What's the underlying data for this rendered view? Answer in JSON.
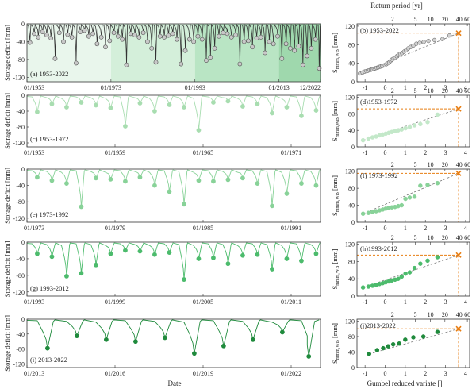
{
  "figure": {
    "ylabel_left": "Storage deficit [mm]",
    "xlabel_left": "Date",
    "top_axis_label": "Return period [yr]",
    "xlabel_right": "Gumbel reduced variate []",
    "ylabel_right_main": "S",
    "ylabel_right_sub": "mmm,WB",
    "ylabel_right_unit": "[mm]",
    "return_period_ticks": [
      "2",
      "5",
      "10",
      "20",
      "40",
      "60"
    ],
    "return_period_values": [
      2,
      5,
      10,
      20,
      40,
      60
    ]
  },
  "colors": {
    "axis": "#333333",
    "marker_line": "#e87d11",
    "period_a": "#9a9a9a",
    "period_b": "#a8ddb0",
    "period_c": "#88d298",
    "period_d": "#4cbb6c",
    "period_e": "#1f8a3c"
  },
  "chart_data": [
    {
      "panel": "a",
      "type": "line",
      "label": "(a)  1953-2022",
      "series_color": "#333333",
      "xticks": [
        "01/1953",
        "01/1973",
        "01/1993",
        "01/2013",
        "12/2022"
      ],
      "xtick_years": [
        1953,
        1973,
        1993,
        2013,
        2022.9
      ],
      "xlim": [
        1953,
        2022.9
      ],
      "yticks": [
        "0",
        "-40",
        "-80",
        "-120"
      ],
      "ylim": [
        -130,
        0
      ],
      "shading": [
        {
          "from": 1953,
          "to": 1973,
          "color": "#e9f6ec"
        },
        {
          "from": 1973,
          "to": 1993,
          "color": "#d4efda"
        },
        {
          "from": 1993,
          "to": 2013,
          "color": "#b9e5c4"
        },
        {
          "from": 2013,
          "to": 2022.9,
          "color": "#9fd8ad"
        }
      ],
      "annual_minima": [
        {
          "year": 1953.7,
          "value": -42
        },
        {
          "year": 1954.7,
          "value": -22
        },
        {
          "year": 1955.7,
          "value": -30
        },
        {
          "year": 1956.7,
          "value": -18
        },
        {
          "year": 1957.7,
          "value": -25
        },
        {
          "year": 1958.7,
          "value": -32
        },
        {
          "year": 1959.7,
          "value": -78
        },
        {
          "year": 1960.7,
          "value": -20
        },
        {
          "year": 1961.7,
          "value": -40
        },
        {
          "year": 1962.7,
          "value": -24
        },
        {
          "year": 1963.7,
          "value": -30
        },
        {
          "year": 1964.7,
          "value": -88
        },
        {
          "year": 1965.7,
          "value": -18
        },
        {
          "year": 1966.7,
          "value": -15
        },
        {
          "year": 1967.7,
          "value": -28
        },
        {
          "year": 1968.7,
          "value": -22
        },
        {
          "year": 1969.7,
          "value": -45
        },
        {
          "year": 1970.7,
          "value": -30
        },
        {
          "year": 1971.7,
          "value": -52
        },
        {
          "year": 1972.7,
          "value": -38
        },
        {
          "year": 1973.7,
          "value": -20
        },
        {
          "year": 1974.7,
          "value": -28
        },
        {
          "year": 1975.7,
          "value": -35
        },
        {
          "year": 1976.7,
          "value": -92
        },
        {
          "year": 1977.7,
          "value": -22
        },
        {
          "year": 1978.7,
          "value": -25
        },
        {
          "year": 1979.7,
          "value": -30
        },
        {
          "year": 1980.7,
          "value": -20
        },
        {
          "year": 1981.7,
          "value": -40
        },
        {
          "year": 1982.7,
          "value": -55
        },
        {
          "year": 1983.7,
          "value": -86
        },
        {
          "year": 1984.7,
          "value": -28
        },
        {
          "year": 1985.7,
          "value": -30
        },
        {
          "year": 1986.7,
          "value": -26
        },
        {
          "year": 1987.7,
          "value": -22
        },
        {
          "year": 1988.7,
          "value": -35
        },
        {
          "year": 1989.7,
          "value": -90
        },
        {
          "year": 1990.7,
          "value": -60
        },
        {
          "year": 1991.7,
          "value": -35
        },
        {
          "year": 1992.7,
          "value": -40
        },
        {
          "year": 1993.7,
          "value": -28
        },
        {
          "year": 1994.7,
          "value": -35
        },
        {
          "year": 1995.7,
          "value": -82
        },
        {
          "year": 1996.7,
          "value": -75
        },
        {
          "year": 1997.7,
          "value": -55
        },
        {
          "year": 1998.7,
          "value": -28
        },
        {
          "year": 1999.7,
          "value": -20
        },
        {
          "year": 2000.7,
          "value": -22
        },
        {
          "year": 2001.7,
          "value": -30
        },
        {
          "year": 2002.7,
          "value": -25
        },
        {
          "year": 2003.7,
          "value": -90
        },
        {
          "year": 2004.7,
          "value": -40
        },
        {
          "year": 2005.7,
          "value": -38
        },
        {
          "year": 2006.7,
          "value": -52
        },
        {
          "year": 2007.7,
          "value": -32
        },
        {
          "year": 2008.7,
          "value": -30
        },
        {
          "year": 2009.7,
          "value": -65
        },
        {
          "year": 2010.7,
          "value": -40
        },
        {
          "year": 2011.7,
          "value": -45
        },
        {
          "year": 2012.7,
          "value": -28
        },
        {
          "year": 2013.7,
          "value": -78
        },
        {
          "year": 2014.7,
          "value": -45
        },
        {
          "year": 2015.7,
          "value": -55
        },
        {
          "year": 2016.7,
          "value": -60
        },
        {
          "year": 2017.7,
          "value": -50
        },
        {
          "year": 2018.7,
          "value": -92
        },
        {
          "year": 2019.7,
          "value": -72
        },
        {
          "year": 2020.7,
          "value": -55
        },
        {
          "year": 2021.7,
          "value": -35
        },
        {
          "year": 2022.6,
          "value": -100
        }
      ]
    },
    {
      "panel": "c",
      "type": "line",
      "label": "(c)  1953-1972",
      "series_color": "#a8ddb0",
      "xticks": [
        "01/1953",
        "01/1959",
        "01/1965",
        "01/1971"
      ],
      "xtick_years": [
        1953,
        1959,
        1965,
        1971
      ],
      "xlim": [
        1953,
        1973
      ],
      "yticks": [
        "0",
        "-40",
        "-80",
        "-120"
      ],
      "ylim": [
        -130,
        0
      ],
      "annual_minima": [
        {
          "year": 1953.7,
          "value": -42
        },
        {
          "year": 1954.7,
          "value": -22
        },
        {
          "year": 1955.7,
          "value": -30
        },
        {
          "year": 1956.7,
          "value": -18
        },
        {
          "year": 1957.7,
          "value": -25
        },
        {
          "year": 1958.7,
          "value": -32
        },
        {
          "year": 1959.7,
          "value": -78
        },
        {
          "year": 1960.7,
          "value": -20
        },
        {
          "year": 1961.7,
          "value": -40
        },
        {
          "year": 1962.7,
          "value": -24
        },
        {
          "year": 1963.7,
          "value": -30
        },
        {
          "year": 1964.7,
          "value": -88
        },
        {
          "year": 1965.7,
          "value": -18
        },
        {
          "year": 1966.7,
          "value": -15
        },
        {
          "year": 1967.7,
          "value": -28
        },
        {
          "year": 1968.7,
          "value": -22
        },
        {
          "year": 1969.7,
          "value": -45
        },
        {
          "year": 1970.7,
          "value": -30
        },
        {
          "year": 1971.7,
          "value": -52
        },
        {
          "year": 1972.7,
          "value": -38
        }
      ]
    },
    {
      "panel": "e",
      "type": "line",
      "label": "(e)  1973-1992",
      "series_color": "#88d298",
      "xticks": [
        "01/1973",
        "01/1979",
        "01/1985",
        "01/1991"
      ],
      "xtick_years": [
        1973,
        1979,
        1985,
        1991
      ],
      "xlim": [
        1973,
        1993
      ],
      "yticks": [
        "0",
        "-40",
        "-80",
        "-120"
      ],
      "ylim": [
        -130,
        0
      ],
      "annual_minima": [
        {
          "year": 1973.7,
          "value": -20
        },
        {
          "year": 1974.7,
          "value": -28
        },
        {
          "year": 1975.7,
          "value": -35
        },
        {
          "year": 1976.7,
          "value": -92
        },
        {
          "year": 1977.7,
          "value": -22
        },
        {
          "year": 1978.7,
          "value": -25
        },
        {
          "year": 1979.7,
          "value": -30
        },
        {
          "year": 1980.7,
          "value": -20
        },
        {
          "year": 1981.7,
          "value": -40
        },
        {
          "year": 1982.7,
          "value": -55
        },
        {
          "year": 1983.7,
          "value": -86
        },
        {
          "year": 1984.7,
          "value": -28
        },
        {
          "year": 1985.7,
          "value": -30
        },
        {
          "year": 1986.7,
          "value": -26
        },
        {
          "year": 1987.7,
          "value": -22
        },
        {
          "year": 1988.7,
          "value": -35
        },
        {
          "year": 1989.7,
          "value": -90
        },
        {
          "year": 1990.7,
          "value": -60
        },
        {
          "year": 1991.7,
          "value": -35
        },
        {
          "year": 1992.7,
          "value": -40
        }
      ]
    },
    {
      "panel": "g",
      "type": "line",
      "label": "(g)  1993-2012",
      "series_color": "#4cbb6c",
      "xticks": [
        "01/1993",
        "01/1999",
        "01/2005",
        "01/2011"
      ],
      "xtick_years": [
        1993,
        1999,
        2005,
        2011
      ],
      "xlim": [
        1993,
        2013
      ],
      "yticks": [
        "0",
        "-40",
        "-80",
        "-120"
      ],
      "ylim": [
        -130,
        0
      ],
      "annual_minima": [
        {
          "year": 1993.7,
          "value": -28
        },
        {
          "year": 1994.7,
          "value": -35
        },
        {
          "year": 1995.7,
          "value": -82
        },
        {
          "year": 1996.7,
          "value": -75
        },
        {
          "year": 1997.7,
          "value": -55
        },
        {
          "year": 1998.7,
          "value": -28
        },
        {
          "year": 1999.7,
          "value": -20
        },
        {
          "year": 2000.7,
          "value": -22
        },
        {
          "year": 2001.7,
          "value": -30
        },
        {
          "year": 2002.7,
          "value": -25
        },
        {
          "year": 2003.7,
          "value": -90
        },
        {
          "year": 2004.7,
          "value": -40
        },
        {
          "year": 2005.7,
          "value": -38
        },
        {
          "year": 2006.7,
          "value": -52
        },
        {
          "year": 2007.7,
          "value": -32
        },
        {
          "year": 2008.7,
          "value": -30
        },
        {
          "year": 2009.7,
          "value": -65
        },
        {
          "year": 2010.7,
          "value": -40
        },
        {
          "year": 2011.7,
          "value": -45
        },
        {
          "year": 2012.7,
          "value": -28
        }
      ]
    },
    {
      "panel": "i",
      "type": "line",
      "label": "(i)  2013-2022",
      "series_color": "#1f8a3c",
      "xticks": [
        "01/2013",
        "01/2016",
        "01/2019",
        "01/2022"
      ],
      "xtick_years": [
        2013,
        2016,
        2019,
        2022
      ],
      "xlim": [
        2013,
        2023
      ],
      "yticks": [
        "0",
        "-40",
        "-80",
        "-120"
      ],
      "ylim": [
        -130,
        0
      ],
      "annual_minima": [
        {
          "year": 2013.7,
          "value": -78
        },
        {
          "year": 2014.7,
          "value": -45
        },
        {
          "year": 2015.7,
          "value": -55
        },
        {
          "year": 2016.7,
          "value": -60
        },
        {
          "year": 2017.7,
          "value": -50
        },
        {
          "year": 2018.7,
          "value": -92
        },
        {
          "year": 2019.7,
          "value": -72
        },
        {
          "year": 2020.7,
          "value": -55
        },
        {
          "year": 2021.7,
          "value": -35
        },
        {
          "year": 2022.6,
          "value": -100
        }
      ]
    },
    {
      "panel": "b",
      "type": "scatter",
      "label": "(b)  1953-2022",
      "marker_fill": "#d0d0d0",
      "marker_edge": "#555555",
      "xticks": [
        "-1",
        "0",
        "1",
        "2",
        "3",
        "4"
      ],
      "xlim": [
        -1.4,
        4.2
      ],
      "yticks": [
        "0",
        "40",
        "80",
        "120"
      ],
      "ylim": [
        0,
        125
      ],
      "x": [
        -1.25,
        -1.12,
        -1.02,
        -0.93,
        -0.85,
        -0.77,
        -0.7,
        -0.63,
        -0.56,
        -0.49,
        -0.42,
        -0.35,
        -0.29,
        -0.22,
        -0.15,
        -0.08,
        -0.01,
        0.06,
        0.13,
        0.2,
        0.27,
        0.34,
        0.42,
        0.5,
        0.58,
        0.66,
        0.75,
        0.84,
        0.94,
        1.04,
        1.15,
        1.27,
        1.4,
        1.55,
        1.72,
        1.92,
        2.15,
        2.45,
        2.85,
        3.2
      ],
      "y": [
        18,
        20,
        22,
        23,
        24,
        25,
        26,
        27,
        28,
        29,
        30,
        31,
        32,
        33,
        34,
        35,
        36,
        38,
        40,
        42,
        45,
        48,
        50,
        52,
        55,
        58,
        60,
        62,
        65,
        68,
        72,
        75,
        78,
        82,
        84,
        86,
        88,
        90,
        92,
        100
      ],
      "return_level": {
        "x": 3.65,
        "y": 105
      }
    },
    {
      "panel": "d",
      "type": "scatter",
      "label": "(d)1953-1972",
      "marker_fill": "#c3e8c9",
      "xticks": [
        "-1",
        "0",
        "1",
        "2",
        "3",
        "4"
      ],
      "xlim": [
        -1.4,
        4.2
      ],
      "yticks": [
        "0",
        "40",
        "80",
        "120"
      ],
      "ylim": [
        0,
        125
      ],
      "x": [
        -1.1,
        -0.83,
        -0.63,
        -0.45,
        -0.28,
        -0.12,
        0.03,
        0.18,
        0.33,
        0.49,
        0.65,
        0.82,
        1.01,
        1.22,
        1.46,
        1.75,
        2.11,
        2.6
      ],
      "y": [
        16,
        20,
        23,
        25,
        28,
        30,
        32,
        34,
        36,
        38,
        40,
        42,
        45,
        48,
        52,
        55,
        60,
        78
      ],
      "return_level": {
        "x": 3.65,
        "y": 92
      }
    },
    {
      "panel": "f",
      "type": "scatter",
      "label": "(f) 1973-1992",
      "marker_fill": "#88d298",
      "xticks": [
        "-1",
        "0",
        "1",
        "2",
        "3",
        "4"
      ],
      "xlim": [
        -1.4,
        4.2
      ],
      "yticks": [
        "0",
        "40",
        "80",
        "120"
      ],
      "ylim": [
        0,
        125
      ],
      "x": [
        -1.1,
        -0.83,
        -0.63,
        -0.45,
        -0.28,
        -0.12,
        0.03,
        0.18,
        0.33,
        0.49,
        0.65,
        0.82,
        1.01,
        1.22,
        1.46,
        1.75,
        2.11,
        2.6
      ],
      "y": [
        20,
        22,
        24,
        26,
        28,
        30,
        32,
        34,
        35,
        36,
        38,
        40,
        55,
        58,
        60,
        86,
        88,
        92
      ],
      "return_level": {
        "x": 3.65,
        "y": 115
      }
    },
    {
      "panel": "h",
      "type": "scatter",
      "label": "(h)1993-2012",
      "marker_fill": "#4cbb6c",
      "xticks": [
        "-1",
        "0",
        "1",
        "2",
        "3",
        "4"
      ],
      "xlim": [
        -1.4,
        4.2
      ],
      "yticks": [
        "0",
        "40",
        "80",
        "120"
      ],
      "ylim": [
        0,
        125
      ],
      "x": [
        -1.1,
        -0.83,
        -0.63,
        -0.45,
        -0.28,
        -0.12,
        0.03,
        0.18,
        0.33,
        0.49,
        0.65,
        0.82,
        1.01,
        1.22,
        1.46,
        1.75,
        2.11,
        2.6
      ],
      "y": [
        20,
        22,
        24,
        26,
        28,
        30,
        32,
        34,
        36,
        38,
        40,
        45,
        52,
        55,
        65,
        75,
        82,
        90
      ],
      "return_level": {
        "x": 3.65,
        "y": 95
      }
    },
    {
      "panel": "j",
      "type": "scatter",
      "label": "(j)2013-2022",
      "marker_fill": "#1f8a3c",
      "xticks": [
        "-1",
        "0",
        "1",
        "2",
        "3",
        "4"
      ],
      "xlim": [
        -1.4,
        4.2
      ],
      "yticks": [
        "0",
        "40",
        "80",
        "120"
      ],
      "ylim": [
        0,
        125
      ],
      "x": [
        -0.8,
        -0.4,
        -0.1,
        0.15,
        0.4,
        0.7,
        1.0,
        1.4,
        1.9,
        2.6
      ],
      "y": [
        35,
        45,
        50,
        55,
        60,
        62,
        72,
        78,
        80,
        92
      ],
      "return_level": {
        "x": 3.65,
        "y": 100
      }
    }
  ]
}
